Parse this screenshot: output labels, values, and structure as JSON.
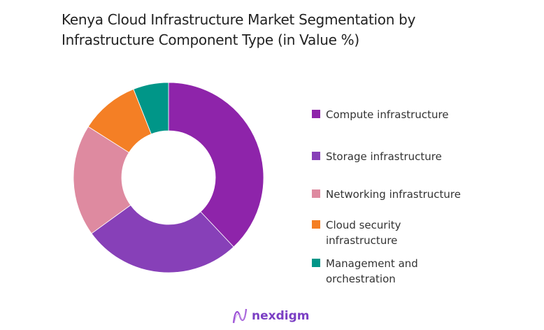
{
  "chart_data": {
    "type": "pie",
    "variant": "donut",
    "title": "Kenya Cloud Infrastructure Market Segmentation by Infrastructure Component Type (in Value %)",
    "categories": [
      "Compute infrastructure",
      "Storage infrastructure",
      "Networking infrastructure",
      "Cloud security infrastructure",
      "Management and orchestration"
    ],
    "values": [
      38,
      27,
      19,
      10,
      6
    ],
    "colors": [
      "#8e24aa",
      "#8740b8",
      "#de8aa0",
      "#f47f25",
      "#009688"
    ],
    "legend_position": "right"
  },
  "title_lines": [
    "Kenya Cloud Infrastructure Market Segmentation by",
    "Infrastructure Component Type (in Value %)"
  ],
  "legend_lines": [
    [
      "Compute infrastructure"
    ],
    [
      "Storage infrastructure"
    ],
    [
      "Networking infrastructure"
    ],
    [
      "Cloud security",
      "infrastructure"
    ],
    [
      "Management and",
      "orchestration"
    ]
  ],
  "logo": {
    "text": "nexdigm",
    "color": "#7b3fc4"
  }
}
